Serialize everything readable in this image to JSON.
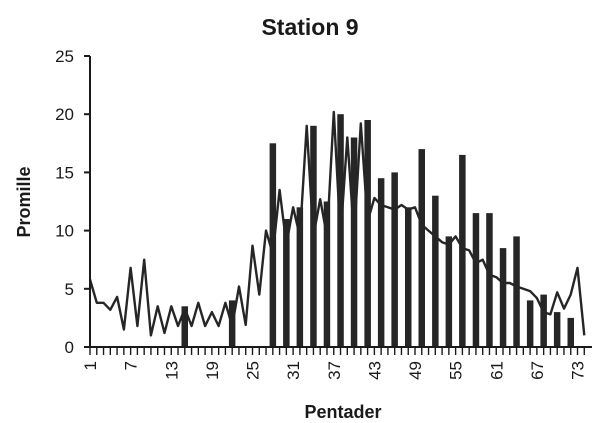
{
  "chart_data": {
    "type": "bar",
    "title": "Station 9",
    "xlabel": "Pentader",
    "ylabel": "Promille",
    "x_range": [
      1,
      73
    ],
    "ylim": [
      0,
      25
    ],
    "y_ticks": [
      0,
      5,
      10,
      15,
      20,
      25
    ],
    "x_tick_labels": [
      "1",
      "7",
      "13",
      "19",
      "25",
      "31",
      "37",
      "43",
      "49",
      "55",
      "61",
      "67",
      "73"
    ],
    "bar_color": "#262626",
    "line_color": "#262626",
    "series": [
      {
        "type": "bar",
        "points": [
          {
            "x": 15,
            "y": 3.5
          },
          {
            "x": 22,
            "y": 4
          },
          {
            "x": 28,
            "y": 17.5
          },
          {
            "x": 30,
            "y": 11
          },
          {
            "x": 32,
            "y": 12
          },
          {
            "x": 34,
            "y": 19
          },
          {
            "x": 36,
            "y": 12.5
          },
          {
            "x": 38,
            "y": 20
          },
          {
            "x": 40,
            "y": 18
          },
          {
            "x": 42,
            "y": 19.5
          },
          {
            "x": 44,
            "y": 14.5
          },
          {
            "x": 46,
            "y": 15
          },
          {
            "x": 48,
            "y": 12
          },
          {
            "x": 50,
            "y": 17
          },
          {
            "x": 52,
            "y": 13
          },
          {
            "x": 54,
            "y": 9.5
          },
          {
            "x": 56,
            "y": 16.5
          },
          {
            "x": 58,
            "y": 11.5
          },
          {
            "x": 60,
            "y": 11.5
          },
          {
            "x": 62,
            "y": 8.5
          },
          {
            "x": 64,
            "y": 9.5
          },
          {
            "x": 66,
            "y": 4
          },
          {
            "x": 68,
            "y": 4.5
          },
          {
            "x": 70,
            "y": 3
          },
          {
            "x": 72,
            "y": 2.5
          }
        ]
      },
      {
        "type": "line",
        "x": [
          1,
          2,
          3,
          4,
          5,
          6,
          7,
          8,
          9,
          10,
          11,
          12,
          13,
          14,
          15,
          16,
          17,
          18,
          19,
          20,
          21,
          22,
          23,
          24,
          25,
          26,
          27,
          28,
          29,
          30,
          31,
          32,
          33,
          34,
          35,
          36,
          37,
          38,
          39,
          40,
          41,
          42,
          43,
          44,
          45,
          46,
          47,
          48,
          49,
          50,
          51,
          52,
          53,
          54,
          55,
          56,
          57,
          58,
          59,
          60,
          61,
          62,
          63,
          64,
          65,
          66,
          67,
          68,
          69,
          70,
          71,
          72,
          73,
          74
        ],
        "y": [
          5.8,
          3.8,
          3.8,
          3.2,
          4.3,
          1.5,
          6.8,
          1.8,
          7.5,
          1.0,
          3.5,
          1.2,
          3.5,
          1.8,
          3.3,
          1.8,
          3.8,
          1.8,
          3.0,
          1.8,
          3.8,
          1.8,
          5.2,
          1.9,
          8.7,
          4.5,
          10.0,
          8.0,
          13.5,
          8.8,
          12.0,
          9.5,
          19.0,
          9.5,
          12.7,
          9.5,
          20.2,
          9.5,
          18.0,
          9.5,
          19.2,
          10.8,
          12.8,
          12.2,
          12.0,
          11.8,
          12.2,
          11.8,
          12.0,
          10.5,
          10.0,
          9.5,
          9.0,
          8.8,
          9.5,
          8.5,
          8.3,
          7.2,
          7.5,
          6.2,
          6.0,
          5.5,
          5.5,
          5.2,
          5.0,
          4.8,
          4.2,
          3.0,
          2.8,
          4.7,
          3.3,
          4.5,
          6.8,
          1.0
        ]
      }
    ]
  }
}
